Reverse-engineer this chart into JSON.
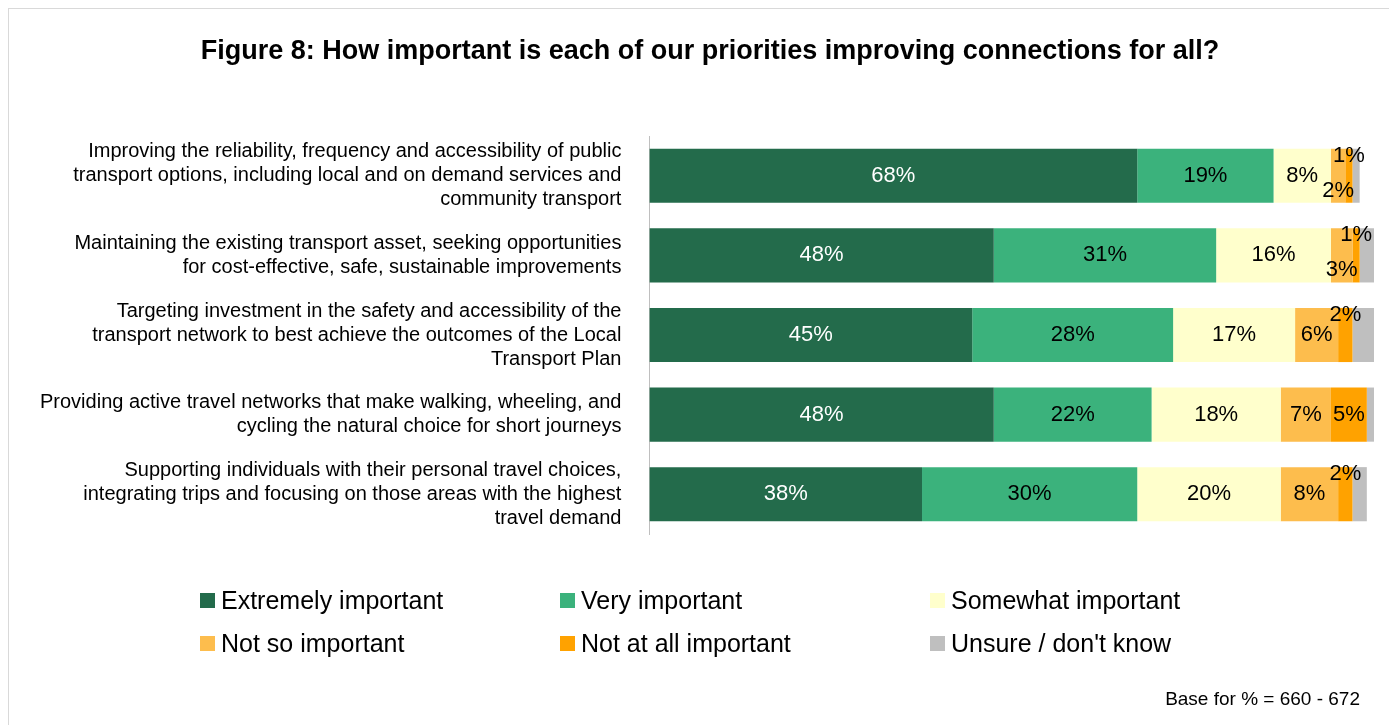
{
  "chart_data": {
    "type": "bar",
    "orientation": "horizontal",
    "stacked": true,
    "title": "Figure 8: How important is each of our priorities improving connections for all?",
    "categories": [
      "Improving the reliability, frequency and accessibility of public transport options, including local and on demand services and community transport",
      "Maintaining the existing transport asset, seeking opportunities for cost-effective, safe, sustainable improvements",
      "Targeting investment in the safety and accessibility of the transport network to best achieve the outcomes of the Local Transport Plan",
      "Providing active travel networks that make walking, wheeling, and cycling the natural choice for short journeys",
      "Supporting individuals with their personal travel choices, integrating trips and focusing on those areas with the highest travel demand"
    ],
    "series": [
      {
        "name": "Extremely important",
        "color": "#236b4b",
        "values": [
          68,
          48,
          45,
          48,
          38
        ],
        "value_labels": [
          "68%",
          "48%",
          "45%",
          "48%",
          "38%"
        ]
      },
      {
        "name": "Very important",
        "color": "#3bb27c",
        "values": [
          19,
          31,
          28,
          22,
          30
        ],
        "value_labels": [
          "19%",
          "31%",
          "28%",
          "22%",
          "30%"
        ]
      },
      {
        "name": "Somewhat important",
        "color": "#ffffcc",
        "values": [
          8,
          16,
          17,
          18,
          20
        ],
        "value_labels": [
          "8%",
          "16%",
          "17%",
          "18%",
          "20%"
        ]
      },
      {
        "name": "Not so important",
        "color": "#fdbd4d",
        "values": [
          2,
          3,
          6,
          7,
          8
        ],
        "value_labels": [
          "2%",
          "3%",
          "6%",
          "7%",
          "8%"
        ]
      },
      {
        "name": "Not at all important",
        "color": "#ffa200",
        "values": [
          1,
          1,
          2,
          5,
          2
        ],
        "value_labels": [
          "1%",
          "1%",
          "2%",
          "5%",
          "2%"
        ]
      },
      {
        "name": "Unsure / don't know",
        "color": "#bfbfbf",
        "values": [
          1,
          2,
          3,
          1,
          2
        ],
        "value_labels": [
          null,
          null,
          null,
          null,
          null
        ]
      }
    ],
    "legend": "bottom",
    "annotations": [
      "Base for % = 660 - 672"
    ]
  }
}
